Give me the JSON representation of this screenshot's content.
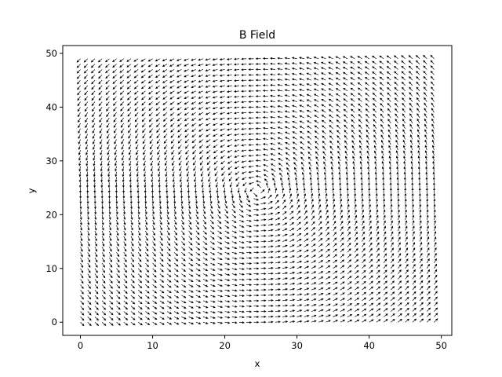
{
  "chart_data": {
    "type": "quiver",
    "title": "B Field",
    "xlabel": "x",
    "ylabel": "y",
    "xlim": [
      -2.45,
      51.45
    ],
    "ylim": [
      -2.45,
      51.45
    ],
    "xticks": [
      0,
      10,
      20,
      30,
      40,
      50
    ],
    "yticks": [
      0,
      10,
      20,
      30,
      40,
      50
    ],
    "grid": false,
    "legend": "none",
    "field": {
      "x_range": [
        0,
        49
      ],
      "y_range": [
        0,
        49
      ],
      "step": 1,
      "center": [
        24.5,
        24.5
      ],
      "rotation": "counterclockwise",
      "arrow_color": "#000000"
    }
  }
}
